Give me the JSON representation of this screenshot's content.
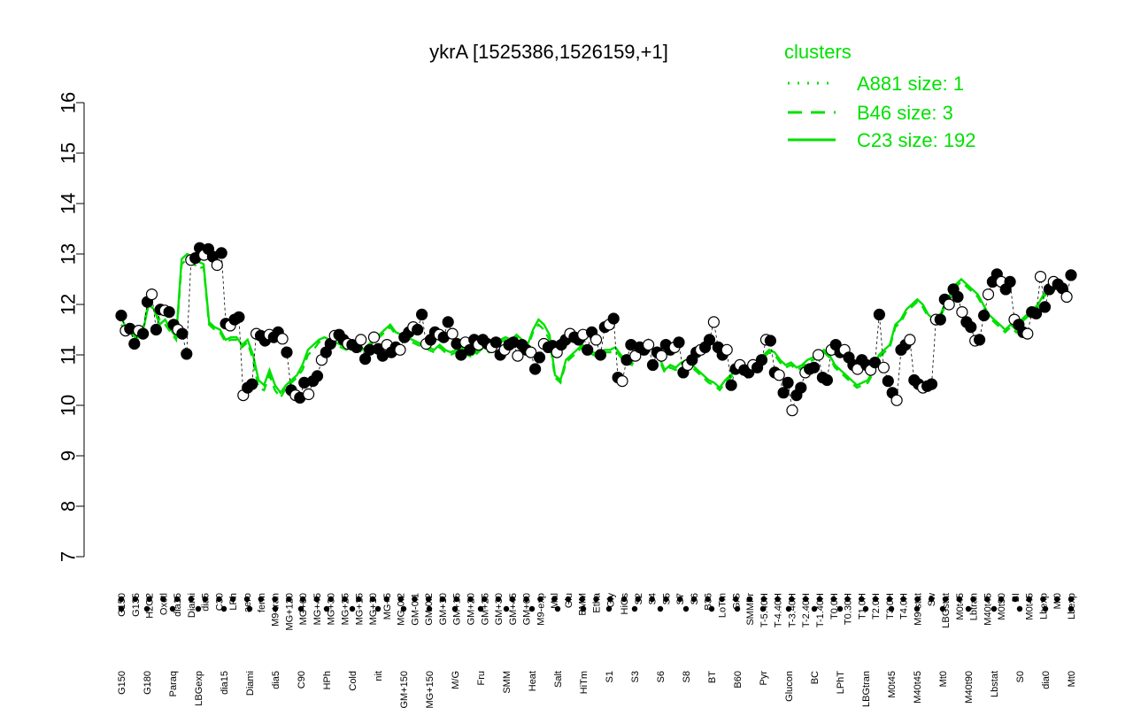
{
  "chart_data": {
    "type": "line",
    "title": "ykrA [1525386,1526159,+1]",
    "xlabel": "",
    "ylabel": "",
    "ylim": [
      7,
      16
    ],
    "yticks": [
      7,
      8,
      9,
      10,
      11,
      12,
      13,
      14,
      15,
      16
    ],
    "grid": false,
    "legend_position": "top-right",
    "legend": {
      "title": "clusters",
      "color": "#00e000",
      "entries": [
        {
          "label": "A881 size: 1",
          "style": "dotted"
        },
        {
          "label": "B46 size: 3",
          "style": "dashed"
        },
        {
          "label": "C23 size: 192",
          "style": "solid"
        }
      ]
    },
    "x_labels_top": [
      "G150",
      "G135",
      "H2O2",
      "Oxctl",
      "dia15",
      "Diami",
      "dia5",
      "C30",
      "LPh",
      "aero",
      "ferm",
      "M9-tran",
      "MG+120",
      "MG+60",
      "MG+45",
      "MG+30",
      "MG+25",
      "MG+15",
      "MG+10",
      "MG+5",
      "MG-0.2",
      "GM-0.1",
      "GM-0.2",
      "GM+10",
      "GM+15",
      "GM+20",
      "GM+25",
      "GM+30",
      "GM+45",
      "GM+60",
      "M9-exp",
      "Mal",
      "Glu",
      "BMM",
      "Etha",
      "Gly",
      "HiOs",
      "S2",
      "S4",
      "S5",
      "S7",
      "S6",
      "B36",
      "LoTm",
      "G/S",
      "SMMPr",
      "T-5.40H",
      "T-4.40H",
      "T-3.40H",
      "T-2.40H",
      "T-1.40H",
      "T0.0H",
      "T0.30H",
      "T1.0H",
      "T2.0H",
      "T3.0H",
      "T4.0H",
      "M9-stat",
      "Sw",
      "LBGstat",
      "M0t45",
      "Lbtran",
      "M40t45",
      "M0t90",
      "BI",
      "M0t45",
      "Lbexp",
      "Mt0",
      "Lbexp"
    ],
    "x_labels_bottom": [
      "G150",
      "G180",
      "Paraq",
      "LBGexp",
      "dia15",
      "Diami",
      "dia5",
      "C90",
      "HPh",
      "Cold",
      "nit",
      "GM+150",
      "MG+150",
      "M/G",
      "Fru",
      "SMM",
      "Heat",
      "Salt",
      "HiTm",
      "S1",
      "S3",
      "S6",
      "S8",
      "BT",
      "B60",
      "Pyr",
      "Glucon",
      "BC",
      "LPhT",
      "LBGtran",
      "M0t45",
      "M40t45",
      "Mt0",
      "M40t90",
      "Lbstat",
      "S0",
      "dia0",
      "Mt0"
    ],
    "series": [
      {
        "style": "solid",
        "values": [
          11.75,
          11.5,
          11.45,
          11.35,
          11.5,
          12.0,
          11.9,
          11.6,
          11.7,
          11.5,
          11.35,
          12.9,
          13.0,
          12.95,
          12.85,
          12.8,
          11.65,
          11.55,
          11.5,
          11.3,
          11.35,
          11.35,
          11.2,
          11.3,
          11.0,
          10.5,
          10.4,
          10.7,
          10.4,
          10.25,
          10.4,
          10.5,
          10.6,
          10.8,
          11.1,
          11.2,
          11.3,
          11.35,
          11.3,
          11.25,
          11.2,
          11.15,
          11.2,
          11.15,
          11.1,
          11.2,
          11.3,
          11.4,
          11.5,
          11.6,
          11.45,
          11.4,
          11.35,
          11.3,
          11.25,
          11.2,
          11.15,
          11.1,
          11.2,
          11.1,
          11.05,
          11.1,
          11.15,
          11.05,
          11.0,
          11.1,
          11.2,
          11.1,
          11.2,
          11.3,
          11.35,
          11.3,
          11.4,
          11.3,
          11.2,
          11.5,
          11.7,
          11.6,
          11.4,
          10.6,
          10.5,
          10.9,
          11.0,
          11.1,
          11.2,
          11.1,
          11.05,
          11.0,
          11.1,
          11.1,
          11.15,
          11.0,
          10.9,
          10.85,
          11.1,
          11.2,
          11.3,
          11.1,
          10.95,
          10.7,
          10.8,
          10.75,
          10.85,
          10.9,
          10.8,
          10.7,
          10.6,
          10.5,
          10.45,
          10.35,
          10.5,
          10.6,
          10.7,
          10.8,
          10.6,
          10.65,
          10.9,
          11.0,
          11.1,
          11.05,
          10.9,
          10.8,
          10.85,
          10.75,
          10.8,
          10.9,
          10.95,
          11.0,
          11.1,
          11.0,
          10.8,
          10.7,
          10.6,
          10.5,
          10.4,
          10.45,
          10.5,
          10.7,
          11.0,
          11.1,
          11.2,
          11.6,
          11.7,
          11.9,
          12.0,
          12.1,
          12.0,
          11.8,
          11.7,
          11.75,
          12.0,
          12.2,
          12.4,
          12.5,
          12.4,
          12.3,
          12.2,
          12.0,
          11.8,
          11.7,
          11.6,
          11.5,
          11.6,
          11.5,
          11.7,
          11.8,
          11.9,
          12.0,
          12.2,
          12.3,
          12.35,
          12.4,
          12.3,
          12.2
        ]
      },
      {
        "style": "dashed",
        "values": [
          11.6,
          11.45,
          11.4,
          11.3,
          11.55,
          12.05,
          11.85,
          11.7,
          11.6,
          11.45,
          11.3,
          12.8,
          12.9,
          12.85,
          12.7,
          12.75,
          11.6,
          11.5,
          11.45,
          11.25,
          11.3,
          11.3,
          11.15,
          11.25,
          10.9,
          10.35,
          10.3,
          10.6,
          10.3,
          10.15,
          10.35,
          10.45,
          10.55,
          10.7,
          11.0,
          11.1,
          11.25,
          11.3,
          11.25,
          11.2,
          11.15,
          11.1,
          11.15,
          11.1,
          11.05,
          11.15,
          11.25,
          11.35,
          11.45,
          11.55,
          11.4,
          11.35,
          11.3,
          11.25,
          11.2,
          11.15,
          11.1,
          11.05,
          11.15,
          11.05,
          11.0,
          11.05,
          11.1,
          11.0,
          10.95,
          11.05,
          11.15,
          11.05,
          11.15,
          11.25,
          11.3,
          11.25,
          11.35,
          11.25,
          11.15,
          11.45,
          11.6,
          11.5,
          11.3,
          10.55,
          10.45,
          10.85,
          10.95,
          11.05,
          11.15,
          11.05,
          11.0,
          10.95,
          11.05,
          11.05,
          11.1,
          10.95,
          10.85,
          10.8,
          11.05,
          11.15,
          11.25,
          11.05,
          10.9,
          10.65,
          10.75,
          10.7,
          10.8,
          10.85,
          10.75,
          10.65,
          10.55,
          10.45,
          10.4,
          10.3,
          10.45,
          10.55,
          10.65,
          10.75,
          10.55,
          10.6,
          10.85,
          10.95,
          11.05,
          11.0,
          10.85,
          10.75,
          10.8,
          10.7,
          10.75,
          10.85,
          10.9,
          10.95,
          11.05,
          10.95,
          10.75,
          10.65,
          10.55,
          10.45,
          10.35,
          10.4,
          10.45,
          10.65,
          10.95,
          11.05,
          11.15,
          11.55,
          11.65,
          11.85,
          11.95,
          12.05,
          11.95,
          11.75,
          11.65,
          11.7,
          11.95,
          12.15,
          12.35,
          12.45,
          12.35,
          12.25,
          12.15,
          11.95,
          11.75,
          11.65,
          11.55,
          11.45,
          11.55,
          11.45,
          11.65,
          11.75,
          11.85,
          11.95,
          12.15,
          12.25,
          12.3,
          12.35,
          12.25,
          12.15
        ]
      }
    ],
    "points": [
      11.78,
      11.48,
      11.52,
      11.22,
      11.48,
      11.42,
      12.05,
      12.2,
      11.5,
      11.9,
      11.88,
      11.85,
      11.6,
      11.5,
      11.42,
      11.02,
      12.88,
      12.92,
      13.12,
      12.98,
      13.1,
      12.95,
      12.78,
      13.02,
      11.62,
      11.58,
      11.7,
      11.75,
      10.2,
      10.35,
      10.42,
      11.42,
      11.38,
      11.28,
      11.4,
      11.35,
      11.45,
      11.32,
      11.05,
      10.3,
      10.2,
      10.15,
      10.45,
      10.22,
      10.48,
      10.58,
      10.9,
      11.05,
      11.22,
      11.38,
      11.4,
      11.3,
      11.22,
      11.2,
      11.15,
      11.3,
      10.92,
      11.1,
      11.35,
      11.12,
      10.98,
      11.2,
      11.05,
      11.15,
      11.1,
      11.35,
      11.45,
      11.55,
      11.5,
      11.8,
      11.22,
      11.3,
      11.45,
      11.4,
      11.35,
      11.65,
      11.42,
      11.22,
      11.0,
      11.25,
      11.1,
      11.3,
      11.2,
      11.3,
      11.22,
      11.15,
      11.25,
      11.0,
      11.1,
      11.2,
      11.25,
      10.98,
      11.2,
      11.1,
      11.05,
      10.72,
      10.95,
      11.22,
      11.15,
      11.18,
      11.05,
      11.2,
      11.3,
      11.42,
      11.35,
      11.3,
      11.4,
      11.1,
      11.45,
      11.3,
      11.0,
      11.55,
      11.6,
      11.72,
      10.55,
      10.48,
      10.9,
      11.2,
      10.98,
      11.15,
      11.1,
      11.2,
      10.8,
      11.05,
      10.98,
      11.2,
      11.1,
      11.15,
      11.25,
      10.65,
      10.8,
      10.9,
      11.05,
      11.1,
      11.15,
      11.3,
      11.65,
      11.15,
      11.0,
      11.1,
      10.4,
      10.72,
      10.8,
      10.7,
      10.65,
      10.8,
      10.75,
      10.9,
      11.3,
      11.28,
      10.65,
      10.6,
      10.25,
      10.45,
      9.9,
      10.2,
      10.35,
      10.65,
      10.72,
      10.75,
      11.0,
      10.55,
      10.5,
      11.1,
      11.2,
      11.05,
      11.1,
      10.95,
      10.8,
      10.72,
      10.9,
      10.8,
      10.7,
      10.85,
      11.8,
      10.75,
      10.48,
      10.25,
      10.1,
      11.1,
      11.2,
      11.3,
      10.5,
      10.42,
      10.35,
      10.38,
      10.42,
      11.7,
      11.7,
      12.1,
      12.0,
      12.3,
      12.15,
      11.85,
      11.65,
      11.55,
      11.28,
      11.3,
      11.78,
      12.2,
      12.45,
      12.6,
      12.45,
      12.3,
      12.45,
      11.7,
      11.6,
      11.45,
      11.42,
      11.85,
      11.82,
      12.55,
      11.95,
      12.3,
      12.45,
      12.4,
      12.32,
      12.15,
      12.58
    ]
  }
}
